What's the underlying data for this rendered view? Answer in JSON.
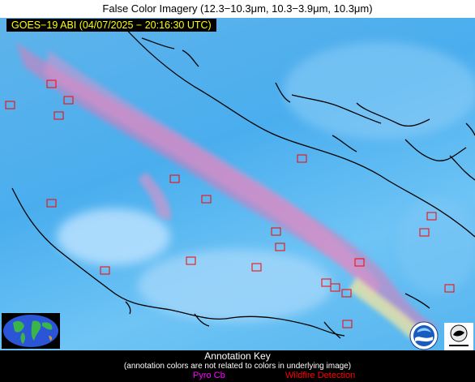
{
  "title": "False Color Imagery (12.3−10.3μm, 10.3−3.9μm, 10.3μm)",
  "timestamp": "GOES−19 ABI (04/07/2025 − 20:16:30 UTC)",
  "annotation_key": {
    "title": "Annotation Key",
    "note": "(annotation colors are not related to colors in underlying image)",
    "pyro_cb_label": "Pyro Cb",
    "wildfire_label": "Wildfire Detection"
  },
  "colors": {
    "background": "#4aaeee",
    "coastline": "#000000",
    "plume": "#e07ab8",
    "pyro_cb": "#ff00ff",
    "wildfire": "#ff0000",
    "stamp_text": "#ffff00"
  },
  "icons": {
    "globe": "earth-globe-icon",
    "logo_a": "noaa-logo",
    "logo_b": "cimss-logo"
  }
}
